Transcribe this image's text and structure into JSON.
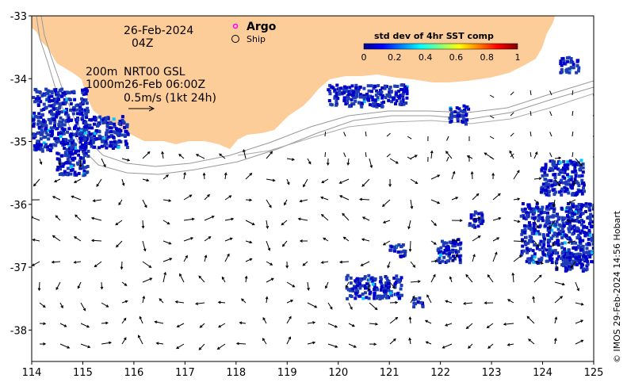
{
  "map": {
    "lon_range": [
      114,
      125
    ],
    "lat_range": [
      -38.5,
      -33
    ],
    "x_ticks": [
      "114",
      "115",
      "116",
      "117",
      "118",
      "119",
      "120",
      "121",
      "122",
      "123",
      "124",
      "125"
    ],
    "y_ticks": [
      "-33",
      "-34",
      "-35",
      "-36",
      "-37",
      "-38"
    ],
    "land_color": "#fccc99",
    "contours": [
      "200m",
      "1000m"
    ]
  },
  "annotations": {
    "date": "26-Feb-2024",
    "time": "04Z",
    "depth_200": "200m",
    "depth_1000": "1000m",
    "product": "NRT00 GSL",
    "product_time": "26-Feb 06:00Z",
    "scale_label": "0.5m/s (1kt 24h)"
  },
  "legend": {
    "argo_label": "Argo",
    "argo_color": "#ff00ff",
    "ship_label": "Ship"
  },
  "colorbar": {
    "title": "std dev of 4hr SST comp",
    "ticks": [
      "0",
      "0.2",
      "0.4",
      "0.6",
      "0.8",
      "1"
    ],
    "colormap": "jet"
  },
  "credit": "© IMOS 29-Feb-2024 14:56 Hobart"
}
